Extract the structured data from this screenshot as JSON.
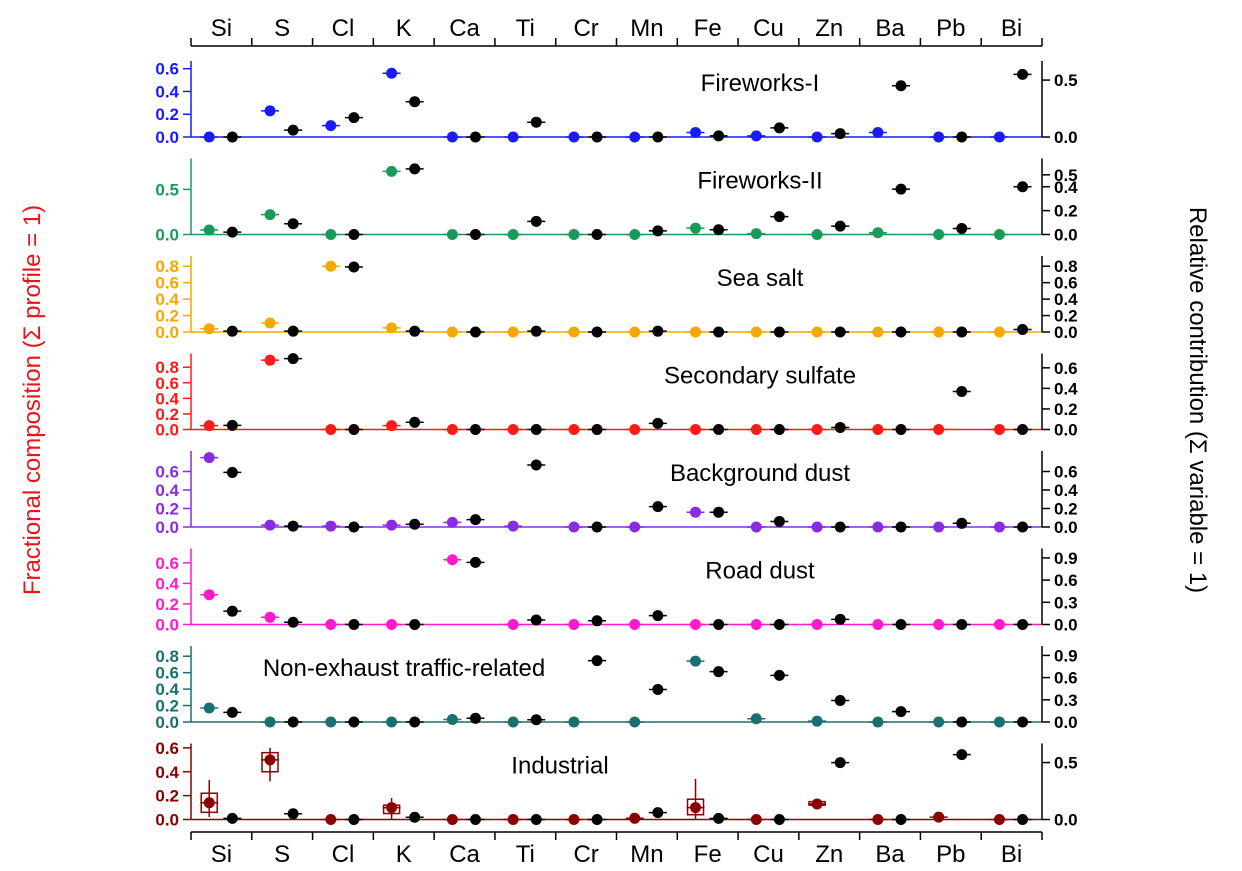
{
  "chart_data": {
    "type": "scatter",
    "categories": [
      "Si",
      "S",
      "Cl",
      "K",
      "Ca",
      "Ti",
      "Cr",
      "Mn",
      "Fe",
      "Cu",
      "Zn",
      "Ba",
      "Pb",
      "Bi"
    ],
    "ylabel_left": "Fractional composition (Σ profile = 1)",
    "ylabel_right": "Relative contribution (Σ variable = 1)",
    "grid": false,
    "legend": "none",
    "panels": [
      {
        "title": "Fireworks-I",
        "color": "#1a1aff",
        "left_ylim": [
          0,
          0.65
        ],
        "left_ticks": [
          "0.0",
          "0.2",
          "0.4",
          "0.6"
        ],
        "left_tick_values": [
          0,
          0.2,
          0.4,
          0.6
        ],
        "right_ylim": [
          0,
          0.65
        ],
        "right_ticks": [
          "0.0",
          "0.5"
        ],
        "right_tick_values": [
          0,
          0.5
        ],
        "profile": [
          0.0,
          0.23,
          0.1,
          0.56,
          0.0,
          0.0,
          0.0,
          0.0,
          0.04,
          0.01,
          0.0,
          0.04,
          0.0,
          0.0
        ],
        "contribution": [
          0.0,
          0.06,
          0.17,
          0.31,
          0.0,
          0.13,
          0.0,
          0.0,
          0.01,
          0.08,
          0.03,
          0.45,
          0.0,
          0.55
        ]
      },
      {
        "title": "Fireworks-II",
        "color": "#1a9a5a",
        "left_ylim": [
          0,
          0.82
        ],
        "left_ticks": [
          "0.0",
          "0.5"
        ],
        "left_tick_values": [
          0,
          0.5
        ],
        "right_ylim": [
          0,
          0.62
        ],
        "right_ticks": [
          "0.0",
          "0.2",
          "0.4",
          "0.5"
        ],
        "right_tick_values": [
          0,
          0.2,
          0.4,
          0.5
        ],
        "profile": [
          0.05,
          0.22,
          0.0,
          0.7,
          0.0,
          0.0,
          0.0,
          0.0,
          0.07,
          0.01,
          0.0,
          0.02,
          0.0,
          0.0
        ],
        "contribution": [
          0.02,
          0.09,
          0.0,
          0.55,
          0.0,
          0.11,
          0.0,
          0.03,
          0.04,
          0.15,
          0.07,
          0.38,
          0.05,
          0.4
        ]
      },
      {
        "title": "Sea salt",
        "color": "#f5a800",
        "left_ylim": [
          0,
          0.9
        ],
        "left_ticks": [
          "0.0",
          "0.2",
          "0.4",
          "0.6",
          "0.8"
        ],
        "left_tick_values": [
          0,
          0.2,
          0.4,
          0.6,
          0.8
        ],
        "right_ylim": [
          0,
          0.9
        ],
        "right_ticks": [
          "0.0",
          "0.2",
          "0.4",
          "0.6",
          "0.8"
        ],
        "right_tick_values": [
          0,
          0.2,
          0.4,
          0.6,
          0.8
        ],
        "profile": [
          0.04,
          0.11,
          0.8,
          0.05,
          0.0,
          0.0,
          0.0,
          0.0,
          0.0,
          0.0,
          0.0,
          0.0,
          0.0,
          0.0
        ],
        "contribution": [
          0.01,
          0.01,
          0.79,
          0.01,
          0.0,
          0.01,
          0.0,
          0.01,
          0.0,
          0.0,
          0.0,
          0.0,
          0.0,
          0.03
        ]
      },
      {
        "title": "Secondary sulfate",
        "color": "#ff1a1a",
        "left_ylim": [
          0,
          0.95
        ],
        "left_ticks": [
          "0.0",
          "0.2",
          "0.4",
          "0.6",
          "0.8"
        ],
        "left_tick_values": [
          0,
          0.2,
          0.4,
          0.6,
          0.8
        ],
        "right_ylim": [
          0,
          0.72
        ],
        "right_ticks": [
          "0.0",
          "0.2",
          "0.4",
          "0.6"
        ],
        "right_tick_values": [
          0,
          0.2,
          0.4,
          0.6
        ],
        "profile": [
          0.05,
          0.89,
          0.0,
          0.05,
          0.0,
          0.0,
          0.0,
          0.0,
          0.0,
          0.0,
          0.0,
          0.0,
          0.0,
          0.0
        ],
        "contribution": [
          0.04,
          0.69,
          0.0,
          0.07,
          0.0,
          0.0,
          0.0,
          0.06,
          0.0,
          0.0,
          0.02,
          0.0,
          0.37,
          0.0
        ]
      },
      {
        "title": "Background dust",
        "color": "#8a2be2",
        "left_ylim": [
          0,
          0.8
        ],
        "left_ticks": [
          "0.0",
          "0.2",
          "0.4",
          "0.6"
        ],
        "left_tick_values": [
          0,
          0.2,
          0.4,
          0.6
        ],
        "right_ylim": [
          0,
          0.8
        ],
        "right_ticks": [
          "0.0",
          "0.2",
          "0.4",
          "0.6"
        ],
        "right_tick_values": [
          0,
          0.2,
          0.4,
          0.6
        ],
        "profile": [
          0.75,
          0.02,
          0.01,
          0.02,
          0.05,
          0.01,
          0.0,
          0.0,
          0.16,
          0.0,
          0.0,
          0.0,
          0.0,
          0.0
        ],
        "contribution": [
          0.59,
          0.01,
          0.0,
          0.03,
          0.08,
          0.67,
          0.0,
          0.22,
          0.16,
          0.06,
          0.0,
          0.0,
          0.04,
          0.0
        ]
      },
      {
        "title": "Road dust",
        "color": "#ff1acd",
        "left_ylim": [
          0,
          0.72
        ],
        "left_ticks": [
          "0.0",
          "0.2",
          "0.4",
          "0.6"
        ],
        "left_tick_values": [
          0,
          0.2,
          0.4,
          0.6
        ],
        "right_ylim": [
          0,
          1.0
        ],
        "right_ticks": [
          "0.0",
          "0.3",
          "0.6",
          "0.9"
        ],
        "right_tick_values": [
          0,
          0.3,
          0.6,
          0.9
        ],
        "profile": [
          0.29,
          0.07,
          0.0,
          0.0,
          0.63,
          0.0,
          0.0,
          0.0,
          0.0,
          0.0,
          0.0,
          0.0,
          0.0,
          0.0
        ],
        "contribution": [
          0.18,
          0.03,
          0.0,
          0.0,
          0.84,
          0.06,
          0.05,
          0.12,
          0.0,
          0.0,
          0.07,
          0.0,
          0.0,
          0.0
        ]
      },
      {
        "title": "Non-exhaust traffic-related",
        "color": "#1a7070",
        "left_ylim": [
          0,
          0.9
        ],
        "left_ticks": [
          "0.0",
          "0.2",
          "0.4",
          "0.6",
          "0.8"
        ],
        "left_tick_values": [
          0,
          0.2,
          0.4,
          0.6,
          0.8
        ],
        "right_ylim": [
          0,
          1.0
        ],
        "right_ticks": [
          "0.0",
          "0.3",
          "0.6",
          "0.9"
        ],
        "right_tick_values": [
          0,
          0.3,
          0.6,
          0.9
        ],
        "profile": [
          0.17,
          0.0,
          0.0,
          0.0,
          0.03,
          0.0,
          0.0,
          0.0,
          0.74,
          0.04,
          0.01,
          0.0,
          0.0,
          0.0
        ],
        "contribution": [
          0.13,
          0.0,
          0.0,
          0.0,
          0.05,
          0.03,
          0.83,
          0.44,
          0.68,
          0.63,
          0.29,
          0.14,
          0.0,
          0.0
        ]
      },
      {
        "title": "Industrial",
        "color": "#8b0000",
        "left_ylim": [
          0,
          0.62
        ],
        "left_ticks": [
          "0.0",
          "0.2",
          "0.4",
          "0.6"
        ],
        "left_tick_values": [
          0,
          0.2,
          0.4,
          0.6
        ],
        "right_ylim": [
          0,
          0.65
        ],
        "right_ticks": [
          "0.0",
          "0.5"
        ],
        "right_tick_values": [
          0,
          0.5
        ],
        "profile": [
          0.14,
          0.5,
          0.0,
          0.1,
          0.0,
          0.0,
          0.0,
          0.01,
          0.1,
          0.0,
          0.13,
          0.0,
          0.02,
          0.0
        ],
        "contribution": [
          0.01,
          0.05,
          0.0,
          0.02,
          0.0,
          0.0,
          0.0,
          0.06,
          0.01,
          0.0,
          0.5,
          0.0,
          0.57,
          0.0
        ],
        "profile_boxes": {
          "Si": [
            0.06,
            0.22
          ],
          "S": [
            0.4,
            0.56
          ],
          "K": [
            0.05,
            0.12
          ],
          "Fe": [
            0.04,
            0.17
          ],
          "Zn": [
            0.12,
            0.15
          ]
        },
        "profile_whiskers": {
          "Si": [
            0.02,
            0.33
          ],
          "S": [
            0.32,
            0.6
          ],
          "K": [
            0.0,
            0.18
          ],
          "Fe": [
            0.0,
            0.34
          ]
        }
      }
    ]
  }
}
